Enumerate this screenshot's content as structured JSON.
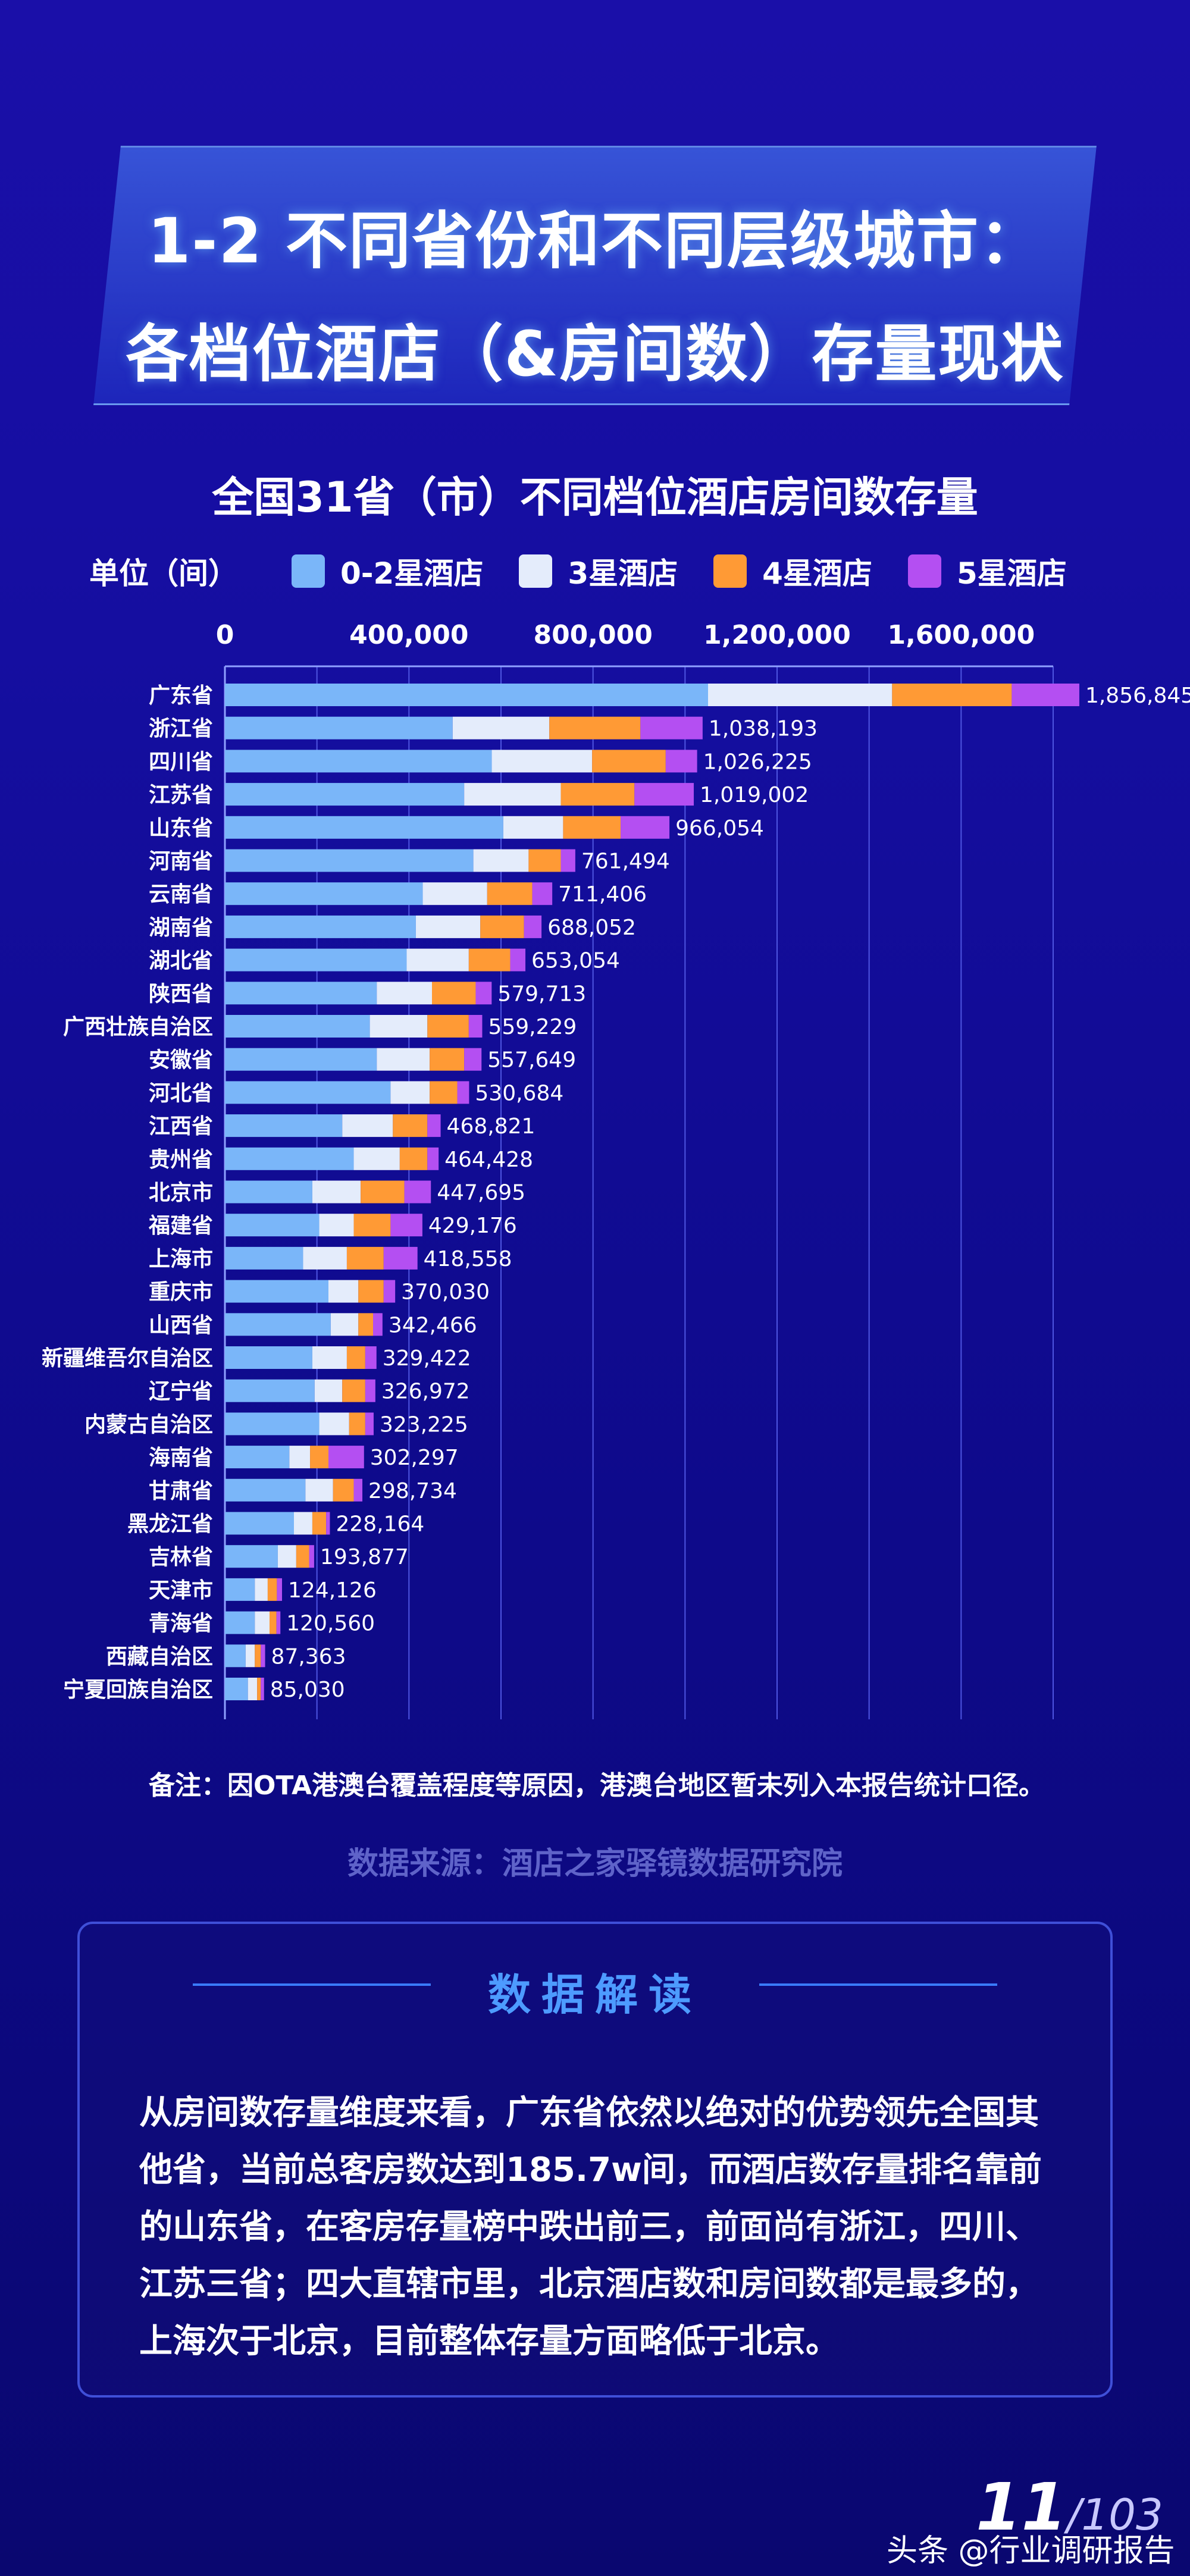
{
  "header": {
    "title_line1": "1-2 不同省份和不同层级城市：",
    "title_line2": "各档位酒店（&房间数）存量现状"
  },
  "legend": {
    "unit": "单位（间）",
    "items": [
      {
        "label": "0-2星酒店",
        "color": "#7ab6f9"
      },
      {
        "label": "3星酒店",
        "color": "#e4ecfb"
      },
      {
        "label": "4星酒店",
        "color": "#ff9a35"
      },
      {
        "label": "5星酒店",
        "color": "#b44ff2"
      }
    ]
  },
  "chart_data": {
    "type": "bar",
    "orientation": "horizontal",
    "stacked": true,
    "title": "全国31省（市）不同档位酒店房间数存量",
    "xlim": [
      0,
      1800000
    ],
    "x_ticks": [
      "0",
      "400,000",
      "800,000",
      "1,200,000",
      "1,600,000"
    ],
    "x_tick_values": [
      0,
      400000,
      800000,
      1200000,
      1600000
    ],
    "grid": true,
    "categories": [
      "广东省",
      "浙江省",
      "四川省",
      "江苏省",
      "山东省",
      "河南省",
      "云南省",
      "湖南省",
      "湖北省",
      "陕西省",
      "广西壮族自治区",
      "安徽省",
      "河北省",
      "江西省",
      "贵州省",
      "北京市",
      "福建省",
      "上海市",
      "重庆市",
      "山西省",
      "新疆维吾尔自治区",
      "辽宁省",
      "内蒙古自治区",
      "海南省",
      "甘肃省",
      "黑龙江省",
      "吉林省",
      "天津市",
      "青海省",
      "西藏自治区",
      "宁夏回族自治区"
    ],
    "series": [
      {
        "name": "0-2星酒店",
        "values": [
          1050000,
          495000,
          580000,
          520000,
          605000,
          540000,
          430000,
          415000,
          395000,
          330000,
          315000,
          330000,
          360000,
          255000,
          280000,
          190000,
          205000,
          170000,
          225000,
          230000,
          190000,
          195000,
          205000,
          140000,
          175000,
          150000,
          115000,
          65000,
          65000,
          45000,
          50000
        ]
      },
      {
        "name": "3星酒店",
        "values": [
          400000,
          210000,
          218000,
          210000,
          130000,
          120000,
          140000,
          140000,
          135000,
          120000,
          125000,
          115000,
          85000,
          110000,
          100000,
          105000,
          75000,
          95000,
          65000,
          60000,
          75000,
          60000,
          65000,
          45000,
          60000,
          40000,
          40000,
          28000,
          32000,
          20000,
          20000
        ]
      },
      {
        "name": "4星酒店",
        "values": [
          260000,
          198000,
          160000,
          160000,
          125000,
          70000,
          98000,
          95000,
          90000,
          95000,
          90000,
          75000,
          60000,
          75000,
          60000,
          95000,
          80000,
          80000,
          55000,
          32000,
          40000,
          50000,
          35000,
          40000,
          45000,
          30000,
          28000,
          20000,
          15000,
          13000,
          8000
        ]
      },
      {
        "name": "5星酒店",
        "values": [
          146845,
          135193,
          68225,
          129002,
          106054,
          31494,
          43406,
          38052,
          33054,
          34713,
          29229,
          37649,
          25684,
          28821,
          24428,
          57695,
          69176,
          73558,
          25030,
          20466,
          24422,
          21972,
          18225,
          77297,
          18734,
          8164,
          10877,
          11126,
          8560,
          9363,
          7030
        ]
      }
    ],
    "totals": [
      "1,856,845",
      "1,038,193",
      "1,026,225",
      "1,019,002",
      "966,054",
      "761,494",
      "711,406",
      "688,052",
      "653,054",
      "579,713",
      "559,229",
      "557,649",
      "530,684",
      "468,821",
      "464,428",
      "447,695",
      "429,176",
      "418,558",
      "370,030",
      "342,466",
      "329,422",
      "326,972",
      "323,225",
      "302,297",
      "298,734",
      "228,164",
      "193,877",
      "124,126",
      "120,560",
      "87,363",
      "85,030"
    ]
  },
  "note": "备注：因OTA港澳台覆盖程度等原因，港澳台地区暂未列入本报告统计口径。",
  "source": "数据来源：酒店之家驿镜数据研究院",
  "interpretation": {
    "heading": "数据解读",
    "body": "从房间数存量维度来看，广东省依然以绝对的优势领先全国其他省，当前总客房数达到185.7w间，而酒店数存量排名靠前的山东省，在客房存量榜中跌出前三，前面尚有浙江，四川、江苏三省；四大直辖市里，北京酒店数和房间数都是最多的，上海次于北京，目前整体存量方面略低于北京。"
  },
  "footer": {
    "page": "11",
    "total": "/103",
    "watermark": "头条 @行业调研报告"
  }
}
